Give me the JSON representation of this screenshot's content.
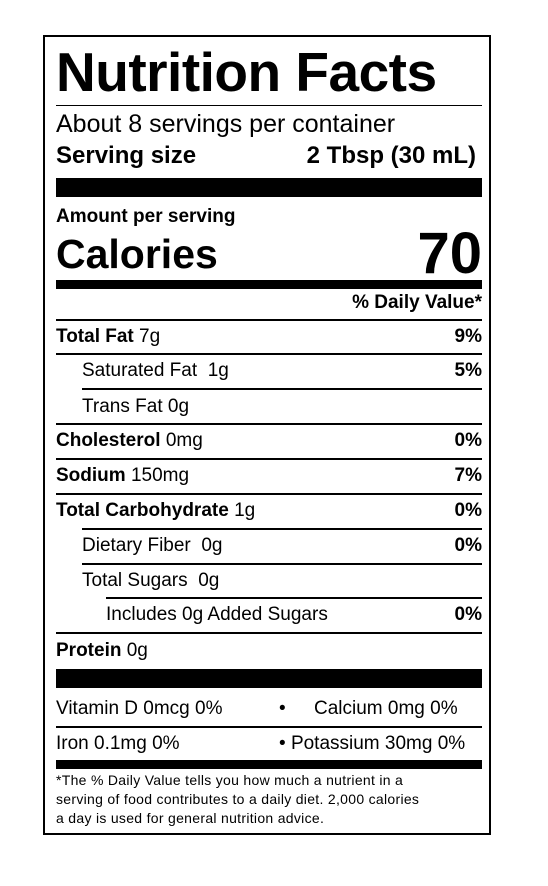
{
  "title": "Nutrition Facts",
  "servings": "About 8 servings per container",
  "serving_size": {
    "label": "Serving size",
    "value": "2 Tbsp (30 mL)"
  },
  "amount_per_serving": "Amount per serving",
  "calories": {
    "label": "Calories",
    "value": "70"
  },
  "daily_value_header": "% Daily Value*",
  "nutrients": {
    "total_fat": {
      "label": "Total Fat",
      "amount": "7g",
      "dv": "9%"
    },
    "saturated_fat": {
      "label": "Saturated Fat",
      "amount": "1g",
      "dv": "5%"
    },
    "trans_fat": {
      "label": "Trans Fat",
      "amount": "0g"
    },
    "cholesterol": {
      "label": "Cholesterol",
      "amount": "0mg",
      "dv": "0%"
    },
    "sodium": {
      "label": "Sodium",
      "amount": "150mg",
      "dv": "7%"
    },
    "total_carbohydrate": {
      "label": "Total Carbohydrate",
      "amount": "1g",
      "dv": "0%"
    },
    "dietary_fiber": {
      "label": "Dietary Fiber",
      "amount": "0g",
      "dv": "0%"
    },
    "total_sugars": {
      "label": "Total Sugars",
      "amount": "0g"
    },
    "added_sugars": {
      "label": "Includes 0g Added Sugars",
      "dv": "0%"
    },
    "protein": {
      "label": "Protein",
      "amount": "0g"
    }
  },
  "vitamins": {
    "vitamin_d": "Vitamin D 0mcg 0%",
    "calcium": "Calcium 0mg 0%",
    "iron": "Iron 0.1mg 0%",
    "potassium": "Potassium 30mg 0%",
    "bullet": "•"
  },
  "footnote": {
    "line1": "*The % Daily Value tells you how much a nutrient in a",
    "line2": "serving of food contributes to a daily diet. 2,000 calories",
    "line3": "a day is used for general nutrition advice."
  }
}
